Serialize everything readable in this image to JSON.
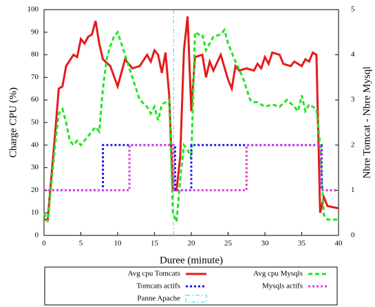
{
  "chart_data": {
    "type": "line",
    "xlabel": "Duree (minute)",
    "ylabel": "Charge CPU (%)",
    "y2label": "Nbre Tomcat - Nbre Mysql",
    "xlim": [
      0,
      40
    ],
    "xticks": [
      0,
      5,
      10,
      15,
      20,
      25,
      30,
      35,
      40
    ],
    "ylim": [
      0,
      100
    ],
    "yticks": [
      0,
      10,
      20,
      30,
      40,
      50,
      60,
      70,
      80,
      90,
      100
    ],
    "y2lim": [
      0,
      5
    ],
    "y2ticks": [
      0,
      1,
      2,
      3,
      4,
      5
    ],
    "series": [
      {
        "name": "Avg cpu Tomcats",
        "color": "#e41a1c",
        "style": "solid",
        "x": [
          0,
          0.5,
          1.5,
          2,
          2.5,
          3,
          4,
          4.5,
          5,
          5.5,
          6,
          6.5,
          7,
          7.5,
          8,
          9,
          10,
          10.5,
          11,
          12,
          13,
          14,
          14.5,
          15,
          15.5,
          16,
          16.5,
          17,
          17.5,
          18,
          18.5,
          19,
          19.5,
          20,
          20.5,
          21.5,
          22,
          22.5,
          23,
          24,
          25,
          25.5,
          26,
          26.5,
          27.5,
          28.5,
          29,
          29.5,
          30,
          30.5,
          31,
          32,
          32.5,
          33.5,
          34,
          35,
          35.5,
          36,
          36.5,
          37,
          37.5,
          38,
          38.5,
          40
        ],
        "values": [
          7,
          7,
          45,
          65,
          66,
          75,
          80,
          79,
          87,
          85,
          88,
          89,
          95,
          85,
          78,
          75,
          66,
          72,
          78,
          74,
          75,
          80,
          77,
          82,
          80,
          72,
          81,
          62,
          20,
          20,
          35,
          82,
          97,
          55,
          79,
          80,
          70,
          77,
          73,
          80,
          69,
          65,
          75,
          73,
          74,
          73,
          76,
          74,
          79,
          76,
          81,
          80,
          76,
          75,
          77,
          75,
          78,
          77,
          81,
          80,
          10,
          17,
          13,
          12
        ]
      },
      {
        "name": "Avg cpu Mysqls",
        "color": "#1ee61e",
        "style": "dashed",
        "x": [
          0,
          0.5,
          1.5,
          2,
          2.5,
          3,
          3.5,
          4,
          4.5,
          5,
          6,
          7,
          7.5,
          8,
          8.5,
          9,
          9.5,
          10,
          11,
          12,
          13,
          14,
          14.5,
          15,
          15.5,
          16,
          17,
          17.5,
          18,
          18.5,
          19,
          19.5,
          20,
          20.5,
          21,
          21.5,
          22,
          23,
          24,
          24.5,
          25,
          26,
          27,
          28,
          28.5,
          29,
          30,
          31,
          32,
          33,
          34,
          34.5,
          35,
          35.5,
          36,
          37,
          37.5,
          38,
          38.5,
          39,
          40
        ],
        "values": [
          10,
          6,
          40,
          54,
          56,
          50,
          42,
          40,
          42,
          40,
          44,
          48,
          46,
          65,
          78,
          84,
          88,
          90,
          80,
          70,
          60,
          57,
          54,
          57,
          51,
          58,
          60,
          10,
          6,
          25,
          40,
          38,
          34,
          90,
          89,
          89,
          82,
          88,
          89,
          91,
          85,
          77,
          70,
          60,
          59,
          59,
          57,
          58,
          57,
          60,
          57,
          55,
          62,
          55,
          58,
          56,
          40,
          9,
          7,
          7,
          7
        ]
      },
      {
        "name": "Tomcats actifs",
        "color": "#1a1ae6",
        "style": "dotted",
        "axis": "y2",
        "x": [
          0,
          8,
          8,
          17.8,
          17.8,
          20,
          20,
          37.7,
          37.7,
          40
        ],
        "values": [
          1,
          1,
          2,
          2,
          1,
          1,
          2,
          2,
          1,
          1
        ]
      },
      {
        "name": "Mysqls actifs",
        "color": "#d940d9",
        "style": "dotted",
        "axis": "y2",
        "x": [
          0,
          11.6,
          11.6,
          17.6,
          17.6,
          27.5,
          27.5,
          37.6,
          37.6,
          40
        ],
        "values": [
          1,
          1,
          2,
          2,
          1,
          1,
          2,
          2,
          1,
          1
        ]
      },
      {
        "name": "Panne Apache",
        "color": "#33d6e6",
        "style": "dashdot",
        "type": "vline",
        "x": 17.6
      }
    ]
  }
}
